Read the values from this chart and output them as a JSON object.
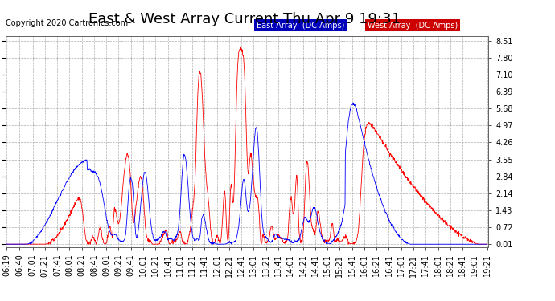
{
  "title": "East & West Array Current Thu Apr 9 19:31",
  "copyright": "Copyright 2020 Cartronics.com",
  "legend_east": "East Array  (DC Amps)",
  "legend_west": "West Array  (DC Amps)",
  "east_color": "#0000ff",
  "west_color": "#ff0000",
  "legend_east_bg": "#0000bb",
  "legend_west_bg": "#cc0000",
  "bg_color": "#ffffff",
  "plot_bg_color": "#ffffff",
  "grid_color": "#999999",
  "yticks": [
    0.01,
    0.72,
    1.43,
    2.14,
    2.84,
    3.55,
    4.26,
    4.97,
    5.68,
    6.39,
    7.1,
    7.8,
    8.51
  ],
  "ymin": -0.1,
  "ymax": 8.7,
  "title_fontsize": 13,
  "axis_fontsize": 7,
  "copyright_fontsize": 7,
  "xtick_labels": [
    "06:19",
    "06:40",
    "07:01",
    "07:21",
    "07:41",
    "08:01",
    "08:21",
    "08:41",
    "09:01",
    "09:21",
    "09:41",
    "10:01",
    "10:21",
    "10:41",
    "11:01",
    "11:21",
    "11:41",
    "12:01",
    "12:21",
    "12:41",
    "13:01",
    "13:21",
    "13:41",
    "14:01",
    "14:21",
    "14:41",
    "15:01",
    "15:21",
    "15:41",
    "16:01",
    "16:21",
    "16:41",
    "17:01",
    "17:21",
    "17:41",
    "18:01",
    "18:21",
    "18:41",
    "19:01",
    "19:21"
  ]
}
